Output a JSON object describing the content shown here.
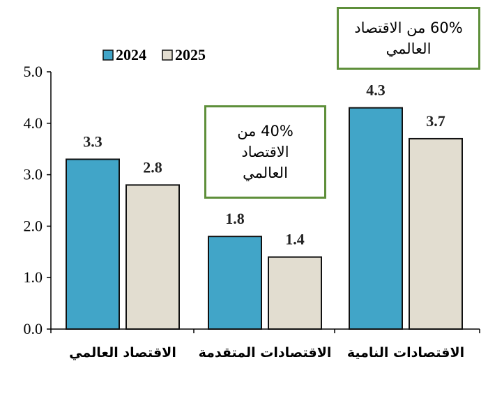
{
  "chart_data": {
    "type": "bar",
    "categories": [
      "الاقتصاد العالمي",
      "الاقتصادات المتقدمة",
      "الاقتصادات النامية"
    ],
    "series": [
      {
        "name": "2024",
        "color": "#41a5c8",
        "values": [
          3.3,
          1.8,
          4.3
        ]
      },
      {
        "name": "2025",
        "color": "#e2ddd0",
        "values": [
          2.8,
          1.4,
          3.7
        ]
      }
    ],
    "data_labels": [
      [
        "3.3",
        "1.8",
        "4.3"
      ],
      [
        "2.8",
        "1.4",
        "3.7"
      ]
    ],
    "ylim": [
      0,
      5
    ],
    "yticks": [
      "0.0",
      "1.0",
      "2.0",
      "3.0",
      "4.0",
      "5.0"
    ],
    "title": "",
    "xlabel": "",
    "ylabel": "",
    "legend_position": "top-left",
    "grid": false
  },
  "annotations": {
    "advanced_share": "40% من الاقتصاد العالمي",
    "developing_share": "60% من الاقتصاد العالمي",
    "border_color": "#5e8f3a"
  }
}
